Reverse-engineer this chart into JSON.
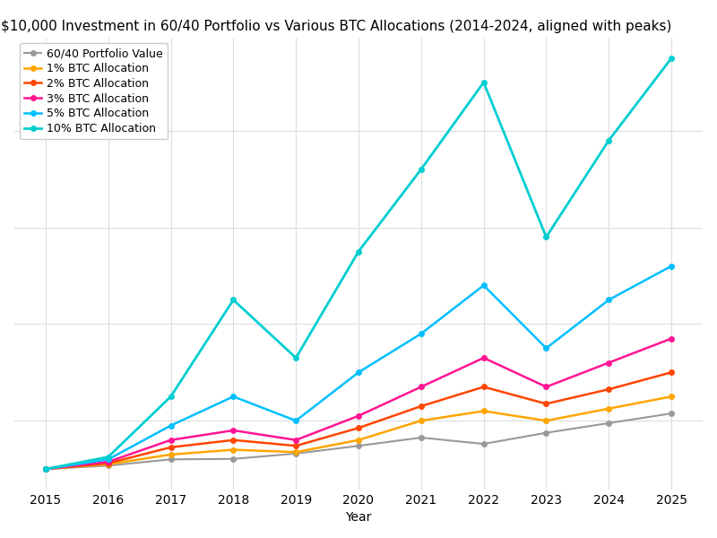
{
  "title": "$10,000 Investment in 60/40 Portfolio vs Various BTC Allocations (2014-2024, aligned with peaks)",
  "xlabel": "Year",
  "years": [
    2015,
    2016,
    2017,
    2018,
    2019,
    2020,
    2021,
    2022,
    2023,
    2024,
    2025
  ],
  "series": [
    {
      "label": "60/40 Portfolio Value",
      "color": "#999999",
      "linewidth": 1.5,
      "markersize": 4,
      "values": [
        10000,
        10700,
        12000,
        12100,
        13200,
        14800,
        16500,
        15200,
        17500,
        19500,
        21500
      ]
    },
    {
      "label": "1% BTC Allocation",
      "color": "#FFA500",
      "linewidth": 1.8,
      "markersize": 4,
      "values": [
        10000,
        11000,
        13000,
        14000,
        13500,
        16000,
        20000,
        22000,
        20000,
        22500,
        25000
      ]
    },
    {
      "label": "2% BTC Allocation",
      "color": "#FF4500",
      "linewidth": 1.8,
      "markersize": 4,
      "values": [
        10000,
        11200,
        14500,
        16000,
        14800,
        18500,
        23000,
        27000,
        23500,
        26500,
        30000
      ]
    },
    {
      "label": "3% BTC Allocation",
      "color": "#FF1493",
      "linewidth": 1.8,
      "markersize": 4,
      "values": [
        10000,
        11500,
        16000,
        18000,
        16000,
        21000,
        27000,
        33000,
        27000,
        32000,
        37000
      ]
    },
    {
      "label": "5% BTC Allocation",
      "color": "#00BFFF",
      "linewidth": 1.8,
      "markersize": 4,
      "values": [
        10000,
        12000,
        19000,
        25000,
        20000,
        30000,
        38000,
        48000,
        35000,
        45000,
        52000
      ]
    },
    {
      "label": "10% BTC Allocation",
      "color": "#00CED1",
      "linewidth": 2.0,
      "markersize": 4,
      "values": [
        10000,
        12500,
        25000,
        45000,
        33000,
        55000,
        72000,
        90000,
        58000,
        78000,
        95000
      ]
    }
  ],
  "background_color": "#ffffff",
  "grid_color": "#dddddd",
  "title_fontsize": 11,
  "legend_fontsize": 9,
  "tick_fontsize": 10
}
